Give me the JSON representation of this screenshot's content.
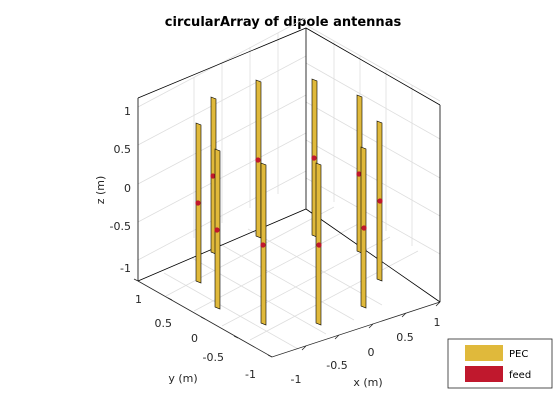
{
  "title": "circularArray of dipole antennas",
  "axes": {
    "xlabel": "x (m)",
    "ylabel": "y (m)",
    "zlabel": "z (m)",
    "x_ticks": [
      "-1",
      "-0.5",
      "0",
      "0.5",
      "1"
    ],
    "y_ticks": [
      "-1",
      "-0.5",
      "0",
      "0.5",
      "1"
    ],
    "z_ticks": [
      "-1",
      "-0.5",
      "0",
      "0.5",
      "1"
    ],
    "grid": true
  },
  "legend": {
    "items": [
      {
        "label": "PEC",
        "color": "#E0B93B"
      },
      {
        "label": "feed",
        "color": "#C0182D"
      }
    ]
  },
  "colors": {
    "pec": "#E0B93B",
    "feed": "#C0182D",
    "background": "#FFFFFF"
  }
}
